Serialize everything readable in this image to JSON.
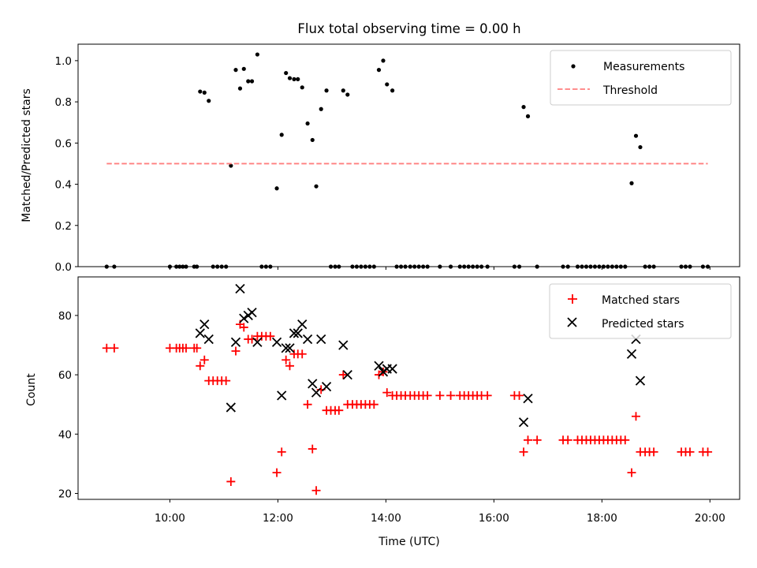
{
  "chart_data": [
    {
      "type": "scatter",
      "title": "Flux total observing time = 0.00 h",
      "xlabel": "",
      "ylabel": "Matched/Predicted stars",
      "ylim": [
        0.0,
        1.08
      ],
      "yticks": [
        0.0,
        0.2,
        0.4,
        0.6,
        0.8,
        1.0
      ],
      "ytick_labels": [
        "0.0",
        "0.2",
        "0.4",
        "0.6",
        "0.8",
        "1.0"
      ],
      "xlim": [
        8.3,
        20.55
      ],
      "legend": "top-right",
      "grid": false,
      "series": [
        {
          "name": "Measurements",
          "marker": "dot",
          "color": "#000000",
          "points": [
            [
              8.83,
              0.0
            ],
            [
              8.97,
              0.0
            ],
            [
              10.0,
              0.0
            ],
            [
              10.12,
              0.0
            ],
            [
              10.18,
              0.0
            ],
            [
              10.24,
              0.0
            ],
            [
              10.3,
              0.0
            ],
            [
              10.45,
              0.0
            ],
            [
              10.5,
              0.0
            ],
            [
              10.56,
              0.85
            ],
            [
              10.64,
              0.845
            ],
            [
              10.72,
              0.805
            ],
            [
              10.8,
              0.0
            ],
            [
              10.88,
              0.0
            ],
            [
              10.96,
              0.0
            ],
            [
              11.04,
              0.0
            ],
            [
              11.13,
              0.49
            ],
            [
              11.22,
              0.955
            ],
            [
              11.3,
              0.865
            ],
            [
              11.37,
              0.96
            ],
            [
              11.45,
              0.9
            ],
            [
              11.52,
              0.9
            ],
            [
              11.62,
              1.03
            ],
            [
              11.7,
              0.0
            ],
            [
              11.78,
              0.0
            ],
            [
              11.86,
              0.0
            ],
            [
              11.98,
              0.38
            ],
            [
              12.07,
              0.64
            ],
            [
              12.15,
              0.94
            ],
            [
              12.22,
              0.915
            ],
            [
              12.3,
              0.91
            ],
            [
              12.37,
              0.91
            ],
            [
              12.45,
              0.87
            ],
            [
              12.55,
              0.695
            ],
            [
              12.64,
              0.615
            ],
            [
              12.71,
              0.39
            ],
            [
              12.8,
              0.765
            ],
            [
              12.9,
              0.855
            ],
            [
              12.98,
              0.0
            ],
            [
              13.06,
              0.0
            ],
            [
              13.13,
              0.0
            ],
            [
              13.21,
              0.855
            ],
            [
              13.29,
              0.835
            ],
            [
              13.38,
              0.0
            ],
            [
              13.46,
              0.0
            ],
            [
              13.54,
              0.0
            ],
            [
              13.62,
              0.0
            ],
            [
              13.7,
              0.0
            ],
            [
              13.78,
              0.0
            ],
            [
              13.87,
              0.955
            ],
            [
              13.95,
              1.0
            ],
            [
              14.02,
              0.885
            ],
            [
              14.12,
              0.855
            ],
            [
              14.2,
              0.0
            ],
            [
              14.28,
              0.0
            ],
            [
              14.36,
              0.0
            ],
            [
              14.45,
              0.0
            ],
            [
              14.53,
              0.0
            ],
            [
              14.61,
              0.0
            ],
            [
              14.69,
              0.0
            ],
            [
              14.77,
              0.0
            ],
            [
              15.0,
              0.0
            ],
            [
              15.2,
              0.0
            ],
            [
              15.37,
              0.0
            ],
            [
              15.45,
              0.0
            ],
            [
              15.53,
              0.0
            ],
            [
              15.61,
              0.0
            ],
            [
              15.69,
              0.0
            ],
            [
              15.77,
              0.0
            ],
            [
              15.88,
              0.0
            ],
            [
              16.38,
              0.0
            ],
            [
              16.47,
              0.0
            ],
            [
              16.55,
              0.775
            ],
            [
              16.63,
              0.73
            ],
            [
              16.8,
              0.0
            ],
            [
              17.28,
              0.0
            ],
            [
              17.37,
              0.0
            ],
            [
              17.55,
              0.0
            ],
            [
              17.63,
              0.0
            ],
            [
              17.71,
              0.0
            ],
            [
              17.79,
              0.0
            ],
            [
              17.87,
              0.0
            ],
            [
              17.95,
              0.0
            ],
            [
              18.03,
              0.0
            ],
            [
              18.11,
              0.0
            ],
            [
              18.19,
              0.0
            ],
            [
              18.27,
              0.0
            ],
            [
              18.35,
              0.0
            ],
            [
              18.43,
              0.0
            ],
            [
              18.55,
              0.405
            ],
            [
              18.63,
              0.635
            ],
            [
              18.71,
              0.58
            ],
            [
              18.8,
              0.0
            ],
            [
              18.88,
              0.0
            ],
            [
              18.96,
              0.0
            ],
            [
              19.47,
              0.0
            ],
            [
              19.55,
              0.0
            ],
            [
              19.63,
              0.0
            ],
            [
              19.87,
              0.0
            ],
            [
              19.96,
              0.0
            ]
          ]
        },
        {
          "name": "Threshold",
          "marker": "dashed-line",
          "color": "#ff7f7f",
          "points": [
            [
              8.83,
              0.5
            ],
            [
              19.96,
              0.5
            ]
          ]
        }
      ]
    },
    {
      "type": "scatter",
      "title": "",
      "xlabel": "Time (UTC)",
      "ylabel": "Count",
      "ylim": [
        18,
        93
      ],
      "yticks": [
        20,
        40,
        60,
        80
      ],
      "ytick_labels": [
        "20",
        "40",
        "60",
        "80"
      ],
      "xlim": [
        8.3,
        20.55
      ],
      "xticks": [
        10,
        12,
        14,
        16,
        18,
        20
      ],
      "xtick_labels": [
        "10:00",
        "12:00",
        "14:00",
        "16:00",
        "18:00",
        "20:00"
      ],
      "legend": "top-right",
      "grid": false,
      "series": [
        {
          "name": "Matched stars",
          "marker": "plus",
          "color": "#ff0000",
          "points": [
            [
              8.83,
              69
            ],
            [
              8.97,
              69
            ],
            [
              10.0,
              69
            ],
            [
              10.12,
              69
            ],
            [
              10.18,
              69
            ],
            [
              10.24,
              69
            ],
            [
              10.3,
              69
            ],
            [
              10.45,
              69
            ],
            [
              10.5,
              69
            ],
            [
              10.56,
              63
            ],
            [
              10.64,
              65
            ],
            [
              10.72,
              58
            ],
            [
              10.8,
              58
            ],
            [
              10.88,
              58
            ],
            [
              10.96,
              58
            ],
            [
              11.04,
              58
            ],
            [
              11.13,
              24
            ],
            [
              11.22,
              68
            ],
            [
              11.3,
              77
            ],
            [
              11.37,
              76
            ],
            [
              11.45,
              72
            ],
            [
              11.52,
              72
            ],
            [
              11.62,
              73
            ],
            [
              11.7,
              73
            ],
            [
              11.78,
              73
            ],
            [
              11.86,
              73
            ],
            [
              11.98,
              27
            ],
            [
              12.07,
              34
            ],
            [
              12.15,
              65
            ],
            [
              12.22,
              63
            ],
            [
              12.3,
              67
            ],
            [
              12.37,
              67
            ],
            [
              12.45,
              67
            ],
            [
              12.55,
              50
            ],
            [
              12.64,
              35
            ],
            [
              12.71,
              21
            ],
            [
              12.8,
              55
            ],
            [
              12.9,
              48
            ],
            [
              12.98,
              48
            ],
            [
              13.06,
              48
            ],
            [
              13.13,
              48
            ],
            [
              13.21,
              60
            ],
            [
              13.29,
              50
            ],
            [
              13.38,
              50
            ],
            [
              13.46,
              50
            ],
            [
              13.54,
              50
            ],
            [
              13.62,
              50
            ],
            [
              13.7,
              50
            ],
            [
              13.78,
              50
            ],
            [
              13.87,
              60
            ],
            [
              13.95,
              61
            ],
            [
              14.02,
              54
            ],
            [
              14.12,
              53
            ],
            [
              14.2,
              53
            ],
            [
              14.28,
              53
            ],
            [
              14.36,
              53
            ],
            [
              14.45,
              53
            ],
            [
              14.53,
              53
            ],
            [
              14.61,
              53
            ],
            [
              14.69,
              53
            ],
            [
              14.77,
              53
            ],
            [
              15.0,
              53
            ],
            [
              15.2,
              53
            ],
            [
              15.37,
              53
            ],
            [
              15.45,
              53
            ],
            [
              15.53,
              53
            ],
            [
              15.61,
              53
            ],
            [
              15.69,
              53
            ],
            [
              15.77,
              53
            ],
            [
              15.88,
              53
            ],
            [
              16.38,
              53
            ],
            [
              16.47,
              53
            ],
            [
              16.55,
              34
            ],
            [
              16.63,
              38
            ],
            [
              16.8,
              38
            ],
            [
              17.28,
              38
            ],
            [
              17.37,
              38
            ],
            [
              17.55,
              38
            ],
            [
              17.63,
              38
            ],
            [
              17.71,
              38
            ],
            [
              17.79,
              38
            ],
            [
              17.87,
              38
            ],
            [
              17.95,
              38
            ],
            [
              18.03,
              38
            ],
            [
              18.11,
              38
            ],
            [
              18.19,
              38
            ],
            [
              18.27,
              38
            ],
            [
              18.35,
              38
            ],
            [
              18.43,
              38
            ],
            [
              18.55,
              27
            ],
            [
              18.63,
              46
            ],
            [
              18.71,
              34
            ],
            [
              18.8,
              34
            ],
            [
              18.88,
              34
            ],
            [
              18.96,
              34
            ],
            [
              19.47,
              34
            ],
            [
              19.55,
              34
            ],
            [
              19.63,
              34
            ],
            [
              19.87,
              34
            ],
            [
              19.96,
              34
            ]
          ]
        },
        {
          "name": "Predicted stars",
          "marker": "x",
          "color": "#000000",
          "points": [
            [
              10.56,
              74
            ],
            [
              10.64,
              77
            ],
            [
              10.72,
              72
            ],
            [
              11.13,
              49
            ],
            [
              11.22,
              71
            ],
            [
              11.3,
              89
            ],
            [
              11.37,
              79
            ],
            [
              11.45,
              80
            ],
            [
              11.52,
              81
            ],
            [
              11.62,
              71
            ],
            [
              11.98,
              71
            ],
            [
              12.07,
              53
            ],
            [
              12.15,
              69
            ],
            [
              12.22,
              69
            ],
            [
              12.3,
              74
            ],
            [
              12.37,
              74
            ],
            [
              12.45,
              77
            ],
            [
              12.55,
              72
            ],
            [
              12.64,
              57
            ],
            [
              12.71,
              54
            ],
            [
              12.8,
              72
            ],
            [
              12.9,
              56
            ],
            [
              13.21,
              70
            ],
            [
              13.29,
              60
            ],
            [
              13.87,
              63
            ],
            [
              13.95,
              61
            ],
            [
              14.02,
              62
            ],
            [
              14.12,
              62
            ],
            [
              16.55,
              44
            ],
            [
              16.63,
              52
            ],
            [
              18.55,
              67
            ],
            [
              18.63,
              72
            ],
            [
              18.71,
              58
            ]
          ]
        }
      ]
    }
  ]
}
